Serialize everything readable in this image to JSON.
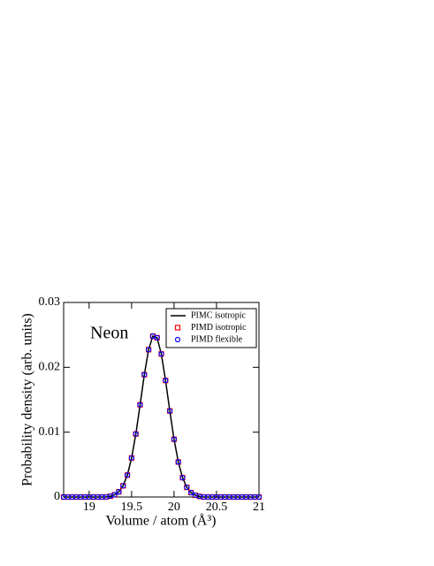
{
  "chart_data": {
    "type": "line",
    "annotation": "Neon",
    "x_label": "Volume / atom  (Å³)",
    "y_label": "Probability  density  (arb. units)",
    "x": [
      18.7,
      18.75,
      18.8,
      18.85,
      18.9,
      18.95,
      19.0,
      19.05,
      19.1,
      19.15,
      19.2,
      19.25,
      19.3,
      19.35,
      19.4,
      19.45,
      19.5,
      19.55,
      19.6,
      19.65,
      19.7,
      19.75,
      19.8,
      19.85,
      19.9,
      19.95,
      20.0,
      20.05,
      20.1,
      20.15,
      20.2,
      20.25,
      20.3,
      20.35,
      20.4,
      20.45,
      20.5,
      20.55,
      20.6,
      20.65,
      20.7,
      20.75,
      20.8,
      20.85,
      20.9,
      20.95,
      21.0
    ],
    "series": [
      {
        "name": "PIMC isotropic",
        "color": "#000000",
        "style": "line",
        "values": [
          0,
          0,
          0,
          0,
          0,
          0,
          0,
          0,
          0,
          0,
          0,
          0.00013,
          0.00034,
          0.0008,
          0.00173,
          0.00338,
          0.00602,
          0.00972,
          0.01422,
          0.01887,
          0.02272,
          0.0248,
          0.02456,
          0.02206,
          0.01797,
          0.01327,
          0.0089,
          0.0054,
          0.00298,
          0.00149,
          0.00068,
          0.00028,
          0.0001,
          0,
          0,
          0,
          0,
          0,
          0,
          0,
          0,
          0,
          0,
          0,
          0,
          0,
          0
        ]
      },
      {
        "name": "PIMD isotropic",
        "color": "#ff0000",
        "style": "square",
        "values": [
          0,
          0,
          0,
          0,
          0,
          0,
          0,
          0,
          0,
          0,
          0,
          0.00013,
          0.00034,
          0.0008,
          0.00173,
          0.00338,
          0.00602,
          0.00972,
          0.01422,
          0.01887,
          0.02272,
          0.0248,
          0.02456,
          0.02206,
          0.01797,
          0.01327,
          0.0089,
          0.0054,
          0.00298,
          0.00149,
          0.00068,
          0.00028,
          0.0001,
          0,
          0,
          0,
          0,
          0,
          0,
          0,
          0,
          0,
          0,
          0,
          0,
          0,
          0
        ]
      },
      {
        "name": "PIMD flexible",
        "color": "#0000ff",
        "style": "circle",
        "values": [
          0,
          0,
          0,
          0,
          0,
          0,
          0,
          0,
          0,
          0,
          0,
          0.00013,
          0.00034,
          0.0008,
          0.00173,
          0.00338,
          0.00602,
          0.00972,
          0.01422,
          0.01887,
          0.02272,
          0.0248,
          0.02456,
          0.02206,
          0.01797,
          0.01327,
          0.0089,
          0.0054,
          0.00298,
          0.00149,
          0.00068,
          0.00028,
          0.0001,
          0,
          0,
          0,
          0,
          0,
          0,
          0,
          0,
          0,
          0,
          0,
          0,
          0,
          0
        ]
      }
    ],
    "xlim": [
      18.7,
      21
    ],
    "xticks": [
      19,
      19.5,
      20,
      20.5,
      21
    ],
    "ylim": [
      0,
      0.03
    ],
    "yticks": [
      0,
      0.01,
      0.02,
      0.03
    ],
    "legend": "upper right",
    "grid": false
  }
}
